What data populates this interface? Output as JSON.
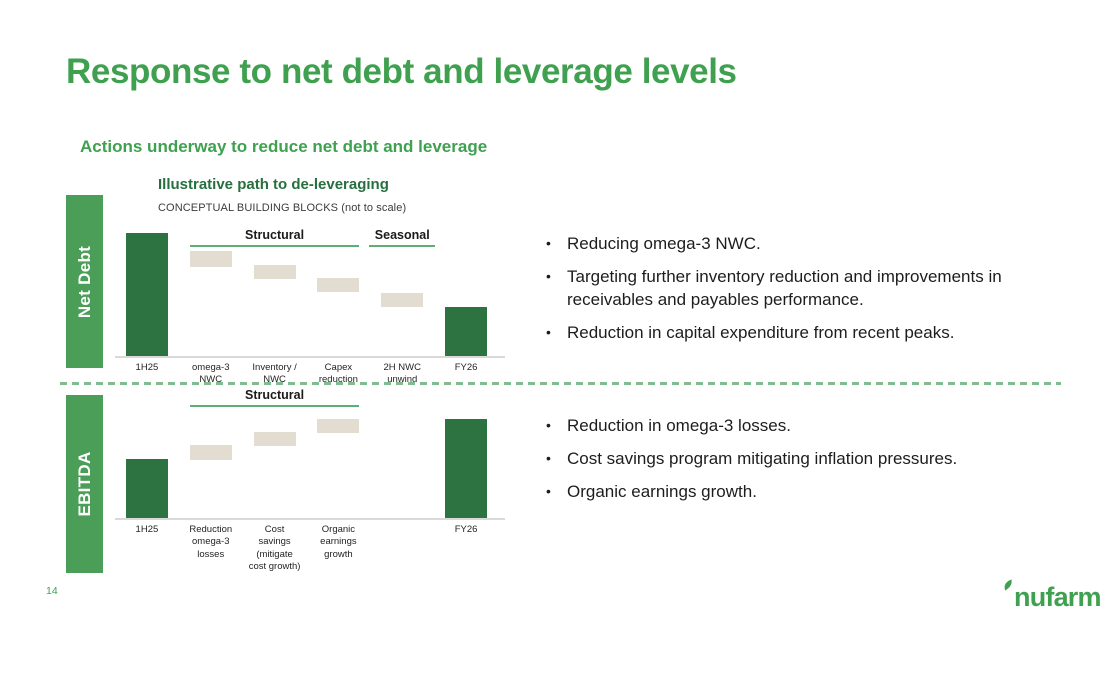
{
  "slide": {
    "title": "Response to net debt and leverage levels",
    "subtitle": "Actions underway to reduce net debt and leverage",
    "page_number": "14",
    "logo_text": "nufarm"
  },
  "chart_header": {
    "title": "Illustrative path to de-leveraging",
    "note": "CONCEPTUAL BUILDING BLOCKS (not to scale)"
  },
  "colors": {
    "brand_green": "#3fa150",
    "sidebar_green": "#4a9e57",
    "bar_dark_green": "#2d7342",
    "chart_title_green": "#26703f",
    "block_beige": "#e3ddd1",
    "underline_green": "#5fae76",
    "dashed_green": "#7fbd90",
    "baseline_gray": "#d9d9d9"
  },
  "chart_data": [
    {
      "type": "bar",
      "variant": "conceptual-waterfall",
      "title": "Net Debt",
      "note": "not to scale",
      "ylim": [
        0,
        100
      ],
      "columns": [
        {
          "label": "1H25",
          "kind": "total",
          "from": 0,
          "to": 98
        },
        {
          "label": "omega-3\nNWC",
          "kind": "delta",
          "from": 71,
          "to": 83
        },
        {
          "label": "Inventory /\nNWC",
          "kind": "delta",
          "from": 61,
          "to": 72
        },
        {
          "label": "Capex\nreduction",
          "kind": "delta",
          "from": 51,
          "to": 62
        },
        {
          "label": "2H NWC\nunwind",
          "kind": "delta",
          "from": 39,
          "to": 50
        },
        {
          "label": "FY26",
          "kind": "total",
          "from": 0,
          "to": 39
        }
      ],
      "groups": [
        {
          "label": "Structural",
          "from_col": 1,
          "to_col": 3
        },
        {
          "label": "Seasonal",
          "from_col": 4,
          "to_col": 4
        }
      ]
    },
    {
      "type": "bar",
      "variant": "conceptual-waterfall",
      "title": "EBITDA",
      "note": "not to scale",
      "ylim": [
        0,
        100
      ],
      "columns": [
        {
          "label": "1H25",
          "kind": "total",
          "from": 0,
          "to": 56
        },
        {
          "label": "Reduction\nomega-3\nlosses",
          "kind": "delta",
          "from": 55,
          "to": 70
        },
        {
          "label": "Cost\nsavings\n(mitigate\ncost growth)",
          "kind": "delta",
          "from": 69,
          "to": 82
        },
        {
          "label": "Organic\nearnings\ngrowth",
          "kind": "delta",
          "from": 81,
          "to": 94
        },
        {
          "label": "",
          "kind": "empty",
          "from": 0,
          "to": 0
        },
        {
          "label": "FY26",
          "kind": "total",
          "from": 0,
          "to": 94
        }
      ],
      "groups": [
        {
          "label": "Structural",
          "from_col": 1,
          "to_col": 3
        }
      ]
    }
  ],
  "bullet_groups": [
    {
      "items": [
        "Reducing omega-3 NWC.",
        "Targeting further inventory reduction and improvements in receivables and payables performance.",
        "Reduction in capital expenditure from recent peaks."
      ]
    },
    {
      "items": [
        "Reduction in omega-3 losses.",
        "Cost savings program mitigating inflation pressures.",
        "Organic earnings growth."
      ]
    }
  ]
}
